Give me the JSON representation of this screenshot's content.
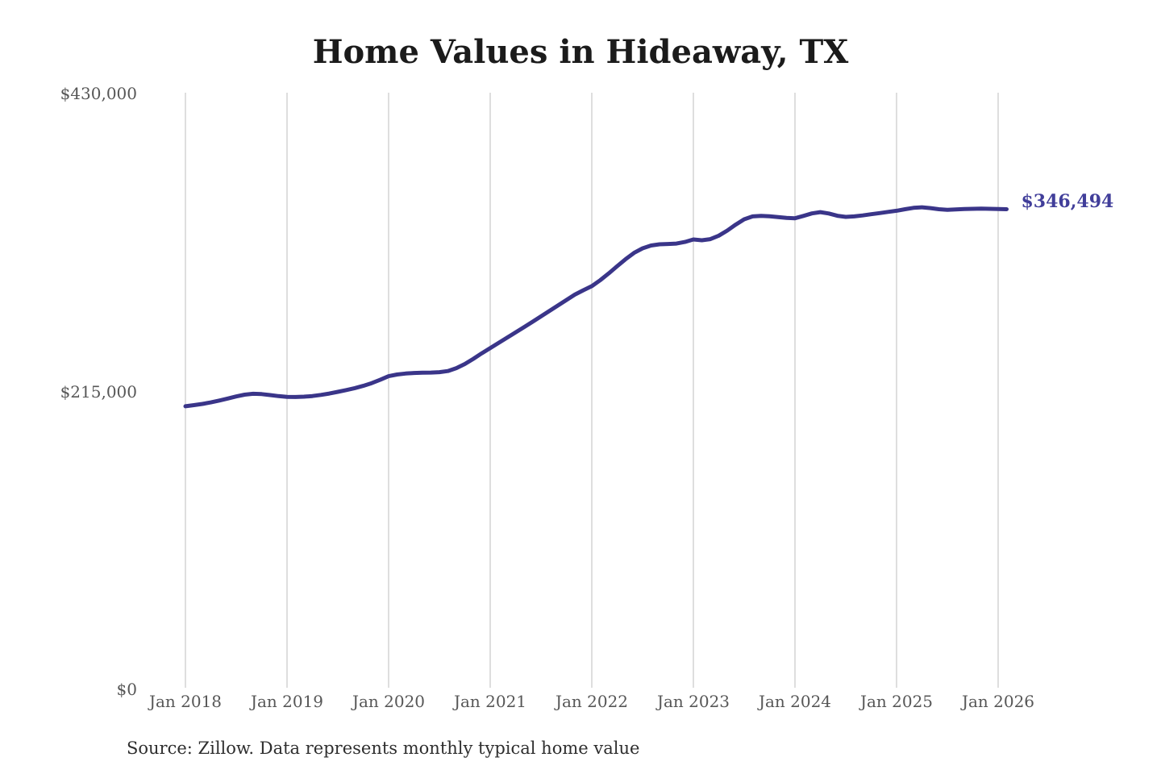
{
  "page": {
    "title": "Home Values in Hideaway, TX",
    "source_note": "Source: Zillow. Data represents monthly typical home value"
  },
  "chart_data": {
    "type": "line",
    "title": "Home Values in Hideaway, TX",
    "xlabel": "",
    "ylabel": "",
    "ylim": [
      0,
      430000
    ],
    "y_ticks": [
      0,
      215000,
      430000
    ],
    "y_tick_labels": [
      "$0",
      "$215,000",
      "$430,000"
    ],
    "x_tick_labels": [
      "Jan 2018",
      "Jan 2019",
      "Jan 2020",
      "Jan 2021",
      "Jan 2022",
      "Jan 2023",
      "Jan 2024",
      "Jan 2025",
      "Jan 2026"
    ],
    "grid": "vertical-only",
    "legend": "none",
    "annotation": {
      "text": "$346,494",
      "value": 346494,
      "position": "line-end-right"
    },
    "colors": {
      "line": "#3a3589",
      "annotation": "#413e9a",
      "grid": "#cccccc",
      "tick_text": "#575757",
      "title_text": "#1b1b1b",
      "background": "#ffffff"
    },
    "series": [
      {
        "name": "Monthly typical home value",
        "color": "#3a3589",
        "x": [
          "2018-01",
          "2018-02",
          "2018-03",
          "2018-04",
          "2018-05",
          "2018-06",
          "2018-07",
          "2018-08",
          "2018-09",
          "2018-10",
          "2018-11",
          "2018-12",
          "2019-01",
          "2019-02",
          "2019-03",
          "2019-04",
          "2019-05",
          "2019-06",
          "2019-07",
          "2019-08",
          "2019-09",
          "2019-10",
          "2019-11",
          "2019-12",
          "2020-01",
          "2020-02",
          "2020-03",
          "2020-04",
          "2020-05",
          "2020-06",
          "2020-07",
          "2020-08",
          "2020-09",
          "2020-10",
          "2020-11",
          "2020-12",
          "2021-01",
          "2021-02",
          "2021-03",
          "2021-04",
          "2021-05",
          "2021-06",
          "2021-07",
          "2021-08",
          "2021-09",
          "2021-10",
          "2021-11",
          "2021-12",
          "2022-01",
          "2022-02",
          "2022-03",
          "2022-04",
          "2022-05",
          "2022-06",
          "2022-07",
          "2022-08",
          "2022-09",
          "2022-10",
          "2022-11",
          "2022-12",
          "2023-01",
          "2023-02",
          "2023-03",
          "2023-04",
          "2023-05",
          "2023-06",
          "2023-07",
          "2023-08",
          "2023-09",
          "2023-10",
          "2023-11",
          "2023-12",
          "2024-01",
          "2024-02",
          "2024-03",
          "2024-04",
          "2024-05",
          "2024-06",
          "2024-07",
          "2024-08",
          "2024-09",
          "2024-10",
          "2024-11",
          "2024-12",
          "2025-01",
          "2025-02",
          "2025-03",
          "2025-04",
          "2025-05",
          "2025-06",
          "2025-07",
          "2025-08",
          "2025-09",
          "2025-10",
          "2025-11",
          "2025-12",
          "2026-01",
          "2026-02"
        ],
        "values": [
          204300,
          205100,
          206000,
          207100,
          208400,
          209900,
          211400,
          212700,
          213300,
          213100,
          212400,
          211600,
          211100,
          211000,
          211200,
          211700,
          212500,
          213500,
          214700,
          216000,
          217400,
          219000,
          221000,
          223400,
          226000,
          227200,
          227900,
          228300,
          228500,
          228600,
          228900,
          229700,
          231800,
          234800,
          238500,
          242500,
          246300,
          250000,
          253800,
          257600,
          261400,
          265300,
          269200,
          273100,
          277000,
          281000,
          284900,
          288000,
          291000,
          295300,
          300200,
          305400,
          310500,
          315000,
          318300,
          320300,
          321200,
          321400,
          321700,
          322900,
          324700,
          324100,
          324900,
          327400,
          331100,
          335400,
          339200,
          341300,
          341700,
          341400,
          340800,
          340200,
          340000,
          341700,
          343500,
          344400,
          343400,
          341800,
          341000,
          341300,
          342000,
          342900,
          343700,
          344600,
          345400,
          346500,
          347500,
          347900,
          347300,
          346500,
          346100,
          346300,
          346600,
          346800,
          346900,
          346800,
          346600,
          346494
        ]
      }
    ]
  }
}
